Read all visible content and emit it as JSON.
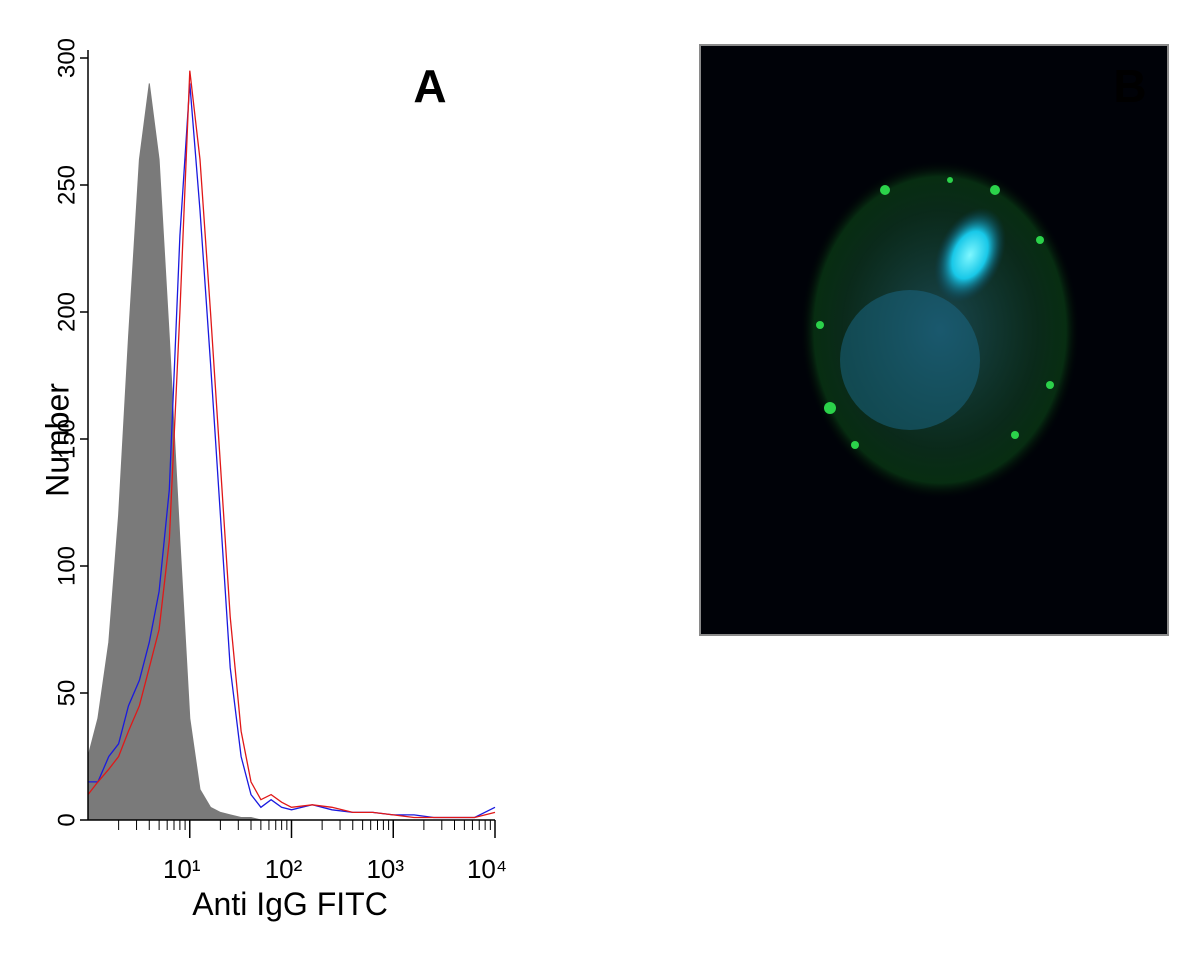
{
  "chart_data": {
    "type": "histogram-lines",
    "annotation": "A",
    "xlabel": "Anti IgG FITC",
    "ylabel": "Number",
    "xscale": "log",
    "xlim": [
      1,
      10000
    ],
    "xticks": [
      {
        "value": 10,
        "label": "10¹"
      },
      {
        "value": 100,
        "label": "10²"
      },
      {
        "value": 1000,
        "label": "10³"
      },
      {
        "value": 10000,
        "label": "10⁴"
      }
    ],
    "ylim": [
      0,
      300
    ],
    "yticks": [
      0,
      50,
      100,
      150,
      200,
      250,
      300
    ],
    "x": [
      1,
      1.25,
      1.6,
      2,
      2.5,
      3.2,
      4,
      5,
      6.3,
      8,
      10,
      12.6,
      16,
      20,
      25,
      32,
      40,
      50,
      63,
      80,
      100,
      160,
      250,
      400,
      630,
      1000,
      1600,
      2500,
      4000,
      6300,
      10000
    ],
    "series": [
      {
        "color": "#7a7a7a",
        "fill": true,
        "values": [
          25,
          40,
          70,
          120,
          190,
          260,
          290,
          260,
          190,
          110,
          40,
          12,
          5,
          3,
          2,
          1,
          1,
          0,
          0,
          0,
          0,
          0,
          0,
          0,
          0,
          0,
          0,
          0,
          0,
          0,
          0
        ]
      },
      {
        "color": "#1a1adf",
        "fill": false,
        "values": [
          15,
          15,
          25,
          30,
          45,
          55,
          70,
          90,
          130,
          230,
          290,
          240,
          180,
          120,
          60,
          25,
          10,
          5,
          8,
          5,
          4,
          6,
          4,
          3,
          3,
          2,
          2,
          1,
          1,
          1,
          5
        ]
      },
      {
        "color": "#e01818",
        "fill": false,
        "values": [
          10,
          15,
          20,
          25,
          35,
          45,
          60,
          75,
          110,
          200,
          295,
          260,
          200,
          140,
          80,
          35,
          15,
          8,
          10,
          7,
          5,
          6,
          5,
          3,
          3,
          2,
          1,
          1,
          1,
          1,
          3
        ]
      }
    ]
  },
  "image_panel": {
    "label": "B"
  }
}
